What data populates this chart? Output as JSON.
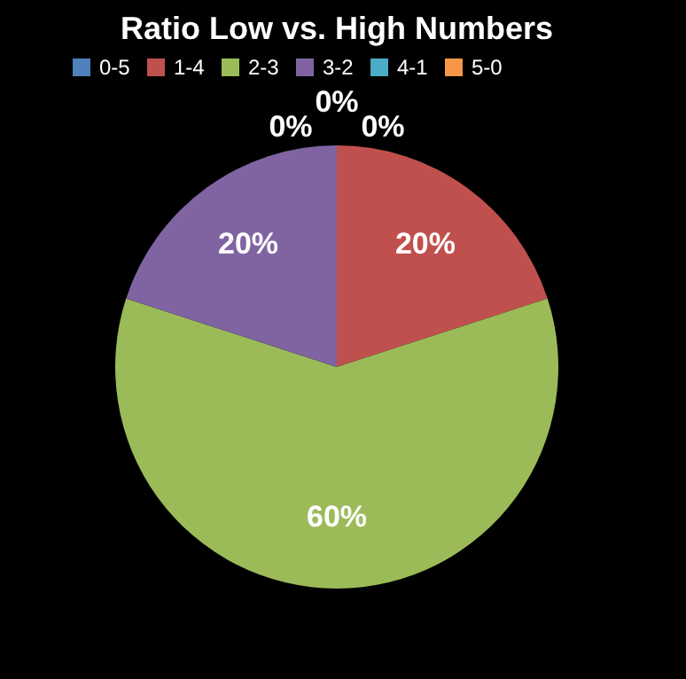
{
  "chart_data": {
    "type": "pie",
    "title": "Ratio Low vs. High Numbers",
    "categories": [
      "0-5",
      "1-4",
      "2-3",
      "3-2",
      "4-1",
      "5-0"
    ],
    "values": [
      0,
      20,
      60,
      20,
      0,
      0
    ],
    "colors": [
      "#4f81bd",
      "#c0504d",
      "#9bbb59",
      "#8064a2",
      "#4bacc6",
      "#f79646"
    ],
    "value_labels": [
      "0%",
      "20%",
      "60%",
      "20%",
      "0%",
      "0%"
    ],
    "legend": "top"
  }
}
